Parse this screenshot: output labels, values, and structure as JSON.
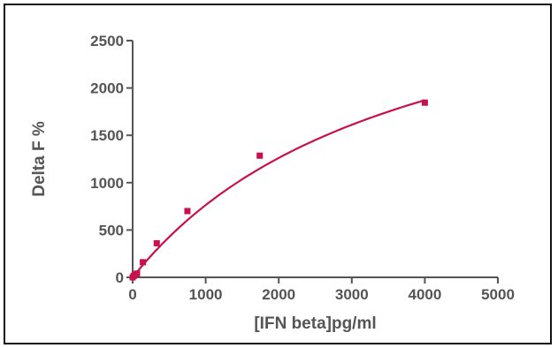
{
  "chart_data": {
    "type": "scatter",
    "title": "",
    "xlabel": "[IFN beta]pg/ml",
    "ylabel": "Delta F %",
    "xlim": [
      0,
      5000
    ],
    "ylim": [
      0,
      2500
    ],
    "xticks": [
      0,
      1000,
      2000,
      3000,
      4000,
      5000
    ],
    "yticks": [
      0,
      500,
      1000,
      1500,
      2000,
      2500
    ],
    "grid": false,
    "legend": "none",
    "series": [
      {
        "points": [
          {
            "x": 0,
            "y": 0
          },
          {
            "x": 15,
            "y": 15
          },
          {
            "x": 30,
            "y": 30
          },
          {
            "x": 60,
            "y": 40
          },
          {
            "x": 140,
            "y": 160
          },
          {
            "x": 330,
            "y": 360
          },
          {
            "x": 750,
            "y": 700
          },
          {
            "x": 1740,
            "y": 1285
          },
          {
            "x": 4000,
            "y": 1845
          }
        ],
        "fit_curve": {
          "model": "hyperbolic",
          "bmax": 3625,
          "kd": 3750,
          "x_end": 4000
        }
      }
    ],
    "colors": {
      "series": "#c8104e",
      "axis": "#555555",
      "frame": "#111111"
    }
  }
}
